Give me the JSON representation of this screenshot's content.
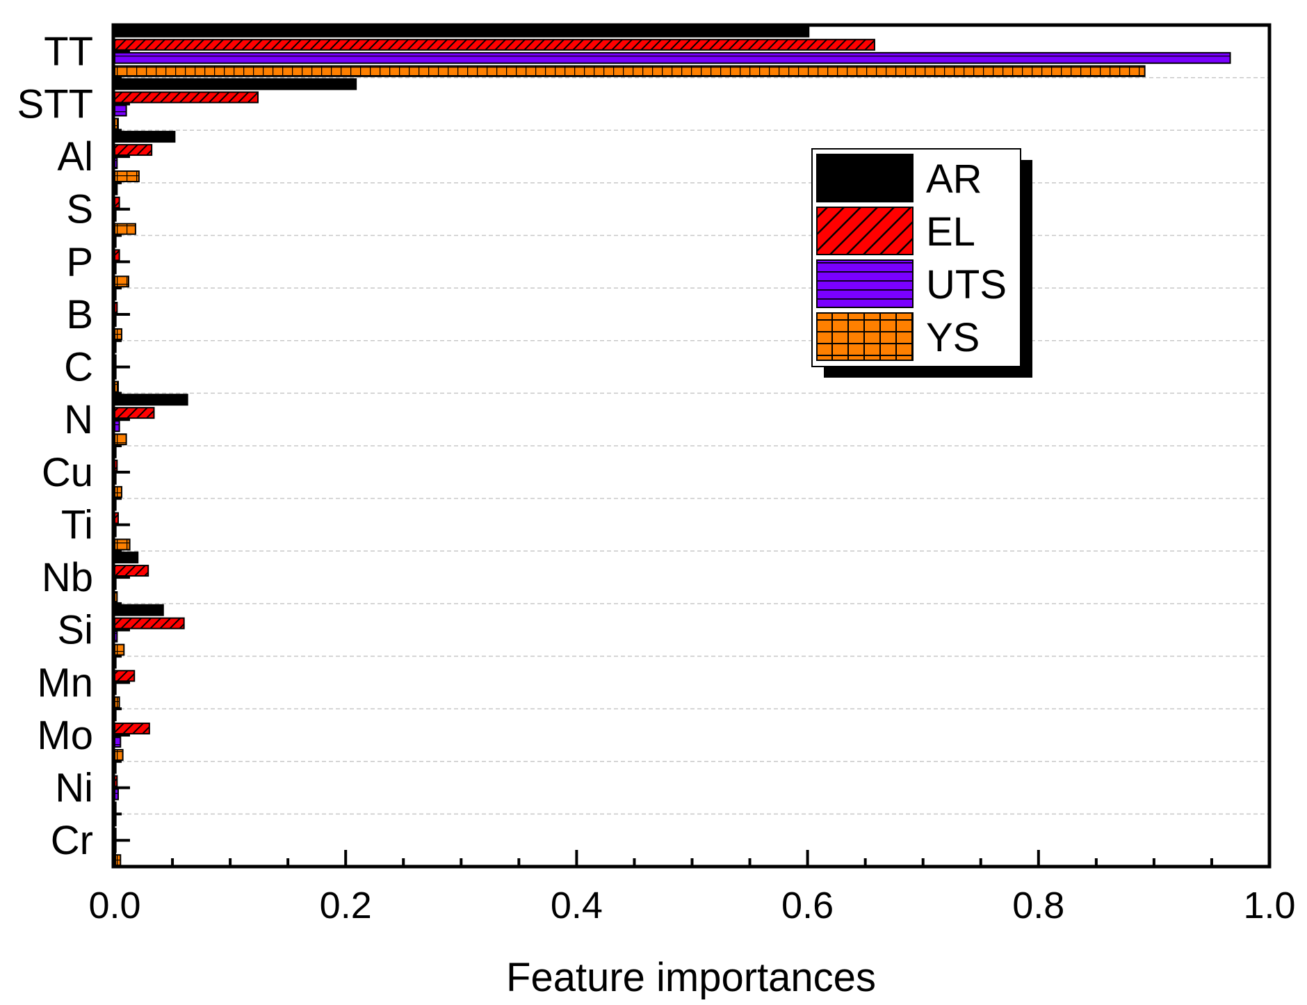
{
  "chart_data": {
    "type": "bar",
    "orientation": "horizontal",
    "title": "",
    "xlabel": "Feature importances",
    "ylabel": "",
    "xlim": [
      0.0,
      1.0
    ],
    "xticks": [
      "0.0",
      "0.2",
      "0.4",
      "0.6",
      "0.8",
      "1.0"
    ],
    "grid": "horizontal dashed",
    "legend_position": "upper-right",
    "categories": [
      "TT",
      "STT",
      "Al",
      "S",
      "P",
      "B",
      "C",
      "N",
      "Cu",
      "Ti",
      "Nb",
      "Si",
      "Mn",
      "Mo",
      "Ni",
      "Cr"
    ],
    "series": [
      {
        "name": "AR",
        "color": "#000000",
        "pattern": "solid",
        "values": [
          0.601,
          0.209,
          0.052,
          0.002,
          0.001,
          0.001,
          0.001,
          0.063,
          0.001,
          0.001,
          0.02,
          0.042,
          0.001,
          0.001,
          0.001,
          0.001
        ]
      },
      {
        "name": "EL",
        "color": "#ff0000",
        "pattern": "diagonal",
        "values": [
          0.658,
          0.124,
          0.032,
          0.004,
          0.004,
          0.002,
          0.001,
          0.034,
          0.002,
          0.003,
          0.029,
          0.06,
          0.017,
          0.03,
          0.002,
          0.001
        ]
      },
      {
        "name": "UTS",
        "color": "#7a00ff",
        "pattern": "horizontal",
        "values": [
          0.966,
          0.01,
          0.002,
          0.001,
          0.001,
          0.001,
          0.001,
          0.004,
          0.001,
          0.001,
          0.001,
          0.002,
          0.001,
          0.005,
          0.003,
          0.001
        ]
      },
      {
        "name": "YS",
        "color": "#ff8000",
        "pattern": "grid",
        "values": [
          0.892,
          0.003,
          0.021,
          0.018,
          0.012,
          0.006,
          0.003,
          0.01,
          0.006,
          0.013,
          0.002,
          0.008,
          0.004,
          0.007,
          0.001,
          0.005
        ]
      }
    ]
  }
}
